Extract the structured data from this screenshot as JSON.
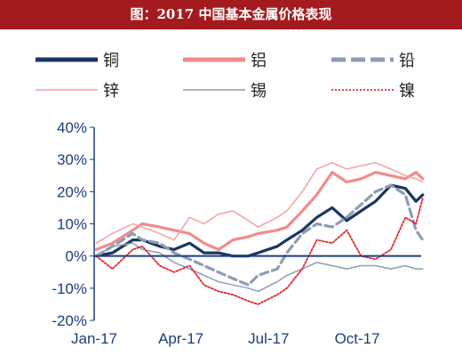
{
  "title": "图：2017 中国基本金属价格表现",
  "colors": {
    "title_bg": "#a41b1f",
    "axis_text": "#1b3f7a",
    "zero_line": "#1b3f7a"
  },
  "chart_data": {
    "type": "line",
    "title": "图：2017 中国基本金属价格表现",
    "xlabel": "",
    "ylabel": "",
    "x_ticks": [
      "Jan-17",
      "Apr-17",
      "Jul-17",
      "Oct-17"
    ],
    "x_tick_dates": [
      "2017-01-01",
      "2017-04-01",
      "2017-07-01",
      "2017-10-01"
    ],
    "xlim": [
      "2017-01-01",
      "2017-12-10"
    ],
    "ylim": [
      -20,
      40
    ],
    "y_ticks": [
      -20,
      -10,
      0,
      10,
      20,
      30,
      40
    ],
    "y_tick_labels": [
      "-20%",
      "-10%",
      "0%",
      "10%",
      "20%",
      "30%",
      "40%"
    ],
    "grid": false,
    "legend_position": "top",
    "series": [
      {
        "name": "铜",
        "color": "#1b3660",
        "style": "solid-thick",
        "x": [
          "2017-01-03",
          "2017-01-20",
          "2017-02-10",
          "2017-02-20",
          "2017-03-10",
          "2017-03-25",
          "2017-04-10",
          "2017-04-25",
          "2017-05-10",
          "2017-05-25",
          "2017-06-10",
          "2017-06-20",
          "2017-07-10",
          "2017-07-20",
          "2017-08-05",
          "2017-08-20",
          "2017-09-05",
          "2017-09-20",
          "2017-10-05",
          "2017-10-20",
          "2017-11-05",
          "2017-11-20",
          "2017-12-01",
          "2017-12-08"
        ],
        "y": [
          0,
          1,
          5,
          5,
          3,
          2,
          4,
          1,
          1,
          0,
          0,
          1,
          3,
          5,
          8,
          12,
          15,
          11,
          14,
          17,
          22,
          21,
          17,
          19
        ]
      },
      {
        "name": "铝",
        "color": "#f28b8b",
        "style": "solid-thick",
        "x": [
          "2017-01-03",
          "2017-01-20",
          "2017-02-10",
          "2017-02-20",
          "2017-03-10",
          "2017-03-25",
          "2017-04-10",
          "2017-04-25",
          "2017-05-10",
          "2017-05-25",
          "2017-06-10",
          "2017-06-20",
          "2017-07-10",
          "2017-07-20",
          "2017-08-05",
          "2017-08-20",
          "2017-09-05",
          "2017-09-20",
          "2017-10-05",
          "2017-10-20",
          "2017-11-05",
          "2017-11-20",
          "2017-12-01",
          "2017-12-08"
        ],
        "y": [
          2,
          4,
          8,
          10,
          9,
          8,
          7,
          4,
          2,
          5,
          6,
          7,
          8,
          9,
          14,
          19,
          26,
          23,
          24,
          26,
          25,
          24,
          26,
          24
        ]
      },
      {
        "name": "铅",
        "color": "#8c9db5",
        "style": "dashed-thick",
        "x": [
          "2017-01-03",
          "2017-01-20",
          "2017-02-10",
          "2017-02-20",
          "2017-03-10",
          "2017-03-25",
          "2017-04-10",
          "2017-04-25",
          "2017-05-10",
          "2017-05-25",
          "2017-06-10",
          "2017-06-20",
          "2017-07-10",
          "2017-07-20",
          "2017-08-05",
          "2017-08-20",
          "2017-09-05",
          "2017-09-20",
          "2017-10-05",
          "2017-10-20",
          "2017-11-05",
          "2017-11-20",
          "2017-12-01",
          "2017-12-08"
        ],
        "y": [
          0,
          3,
          7,
          5,
          4,
          1,
          -1,
          -3,
          -5,
          -7,
          -9,
          -6,
          -4,
          1,
          7,
          10,
          9,
          12,
          16,
          20,
          22,
          19,
          8,
          5
        ]
      },
      {
        "name": "锌",
        "color": "#f4a2a2",
        "style": "solid-thin",
        "x": [
          "2017-01-03",
          "2017-01-20",
          "2017-02-10",
          "2017-02-20",
          "2017-03-10",
          "2017-03-25",
          "2017-04-10",
          "2017-04-25",
          "2017-05-10",
          "2017-05-25",
          "2017-06-10",
          "2017-06-20",
          "2017-07-10",
          "2017-07-20",
          "2017-08-05",
          "2017-08-20",
          "2017-09-05",
          "2017-09-20",
          "2017-10-05",
          "2017-10-20",
          "2017-11-05",
          "2017-11-20",
          "2017-12-01",
          "2017-12-08"
        ],
        "y": [
          4,
          7,
          10,
          9,
          7,
          5,
          12,
          10,
          13,
          14,
          11,
          9,
          12,
          14,
          20,
          27,
          29,
          27,
          28,
          29,
          27,
          25,
          24,
          23
        ]
      },
      {
        "name": "锡",
        "color": "#8c9db5",
        "style": "solid-thin",
        "x": [
          "2017-01-03",
          "2017-01-20",
          "2017-02-10",
          "2017-02-20",
          "2017-03-10",
          "2017-03-25",
          "2017-04-10",
          "2017-04-25",
          "2017-05-10",
          "2017-05-25",
          "2017-06-10",
          "2017-06-20",
          "2017-07-10",
          "2017-07-20",
          "2017-08-05",
          "2017-08-20",
          "2017-09-05",
          "2017-09-20",
          "2017-10-05",
          "2017-10-20",
          "2017-11-05",
          "2017-11-20",
          "2017-12-01",
          "2017-12-08"
        ],
        "y": [
          0,
          3,
          4,
          2,
          1,
          -2,
          -4,
          -6,
          -8,
          -9,
          -10,
          -11,
          -8,
          -6,
          -4,
          -2,
          -3,
          -4,
          -3,
          -3,
          -4,
          -3,
          -4,
          -4
        ]
      },
      {
        "name": "镍",
        "color": "#e3262d",
        "style": "dotted",
        "x": [
          "2017-01-03",
          "2017-01-20",
          "2017-02-10",
          "2017-02-20",
          "2017-03-10",
          "2017-03-25",
          "2017-04-10",
          "2017-04-25",
          "2017-05-10",
          "2017-05-25",
          "2017-06-10",
          "2017-06-20",
          "2017-07-10",
          "2017-07-20",
          "2017-08-05",
          "2017-08-20",
          "2017-09-05",
          "2017-09-20",
          "2017-10-05",
          "2017-10-20",
          "2017-11-05",
          "2017-11-20",
          "2017-12-01",
          "2017-12-08"
        ],
        "y": [
          0,
          -4,
          2,
          3,
          -3,
          -5,
          -3,
          -9,
          -11,
          -12,
          -14,
          -15,
          -12,
          -10,
          -4,
          5,
          4,
          8,
          0,
          -1,
          2,
          12,
          10,
          18
        ]
      }
    ]
  }
}
